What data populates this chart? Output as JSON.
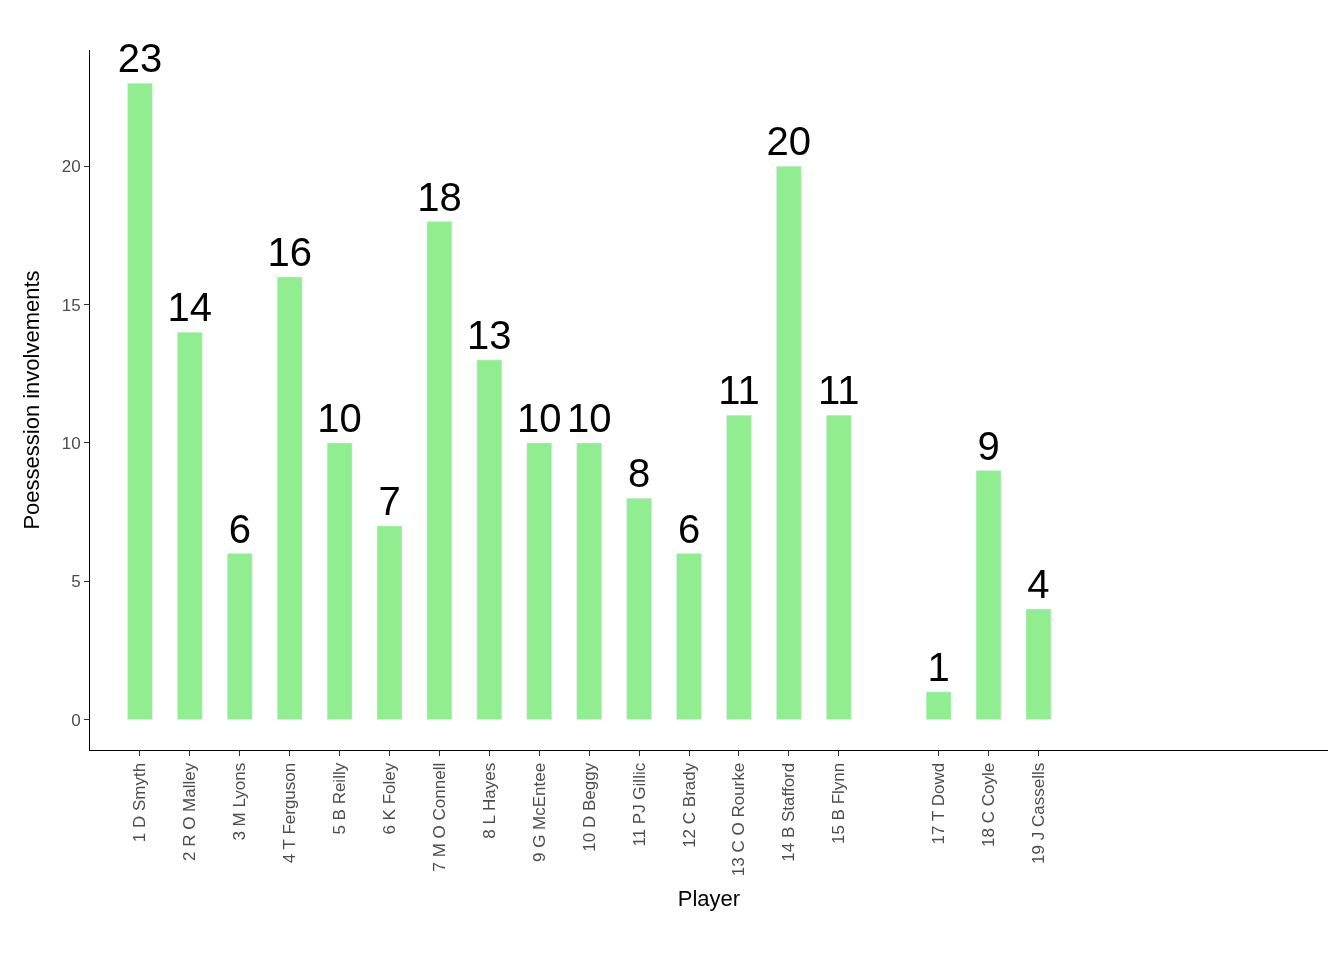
{
  "chart_data": {
    "type": "bar",
    "xlabel": "Player",
    "ylabel": "Poessession involvements",
    "categories": [
      "1 D Smyth",
      "2 R O Malley",
      "3 M Lyons",
      "4 T Ferguson",
      "5 B Reilly",
      "6 K Foley",
      "7 M O Connell",
      "8 L Hayes",
      "9 G McEntee",
      "10 D Beggy",
      "11 PJ Gillic",
      "12 C Brady",
      "13 C O Rourke",
      "14 B Stafford",
      "15 B Flynn",
      null,
      "17 T Dowd",
      "18 C Coyle",
      "19 J Cassells",
      null,
      null,
      null,
      null,
      null
    ],
    "values": [
      23,
      14,
      6,
      16,
      10,
      7,
      18,
      13,
      10,
      10,
      8,
      6,
      11,
      20,
      11,
      null,
      1,
      9,
      4,
      null,
      null,
      null,
      null,
      null
    ],
    "color": "#90ee90",
    "ylim": [
      -1.1,
      24.2
    ],
    "yticks": [
      0,
      5,
      10,
      15,
      20
    ],
    "data_labels": true,
    "legend": false
  }
}
